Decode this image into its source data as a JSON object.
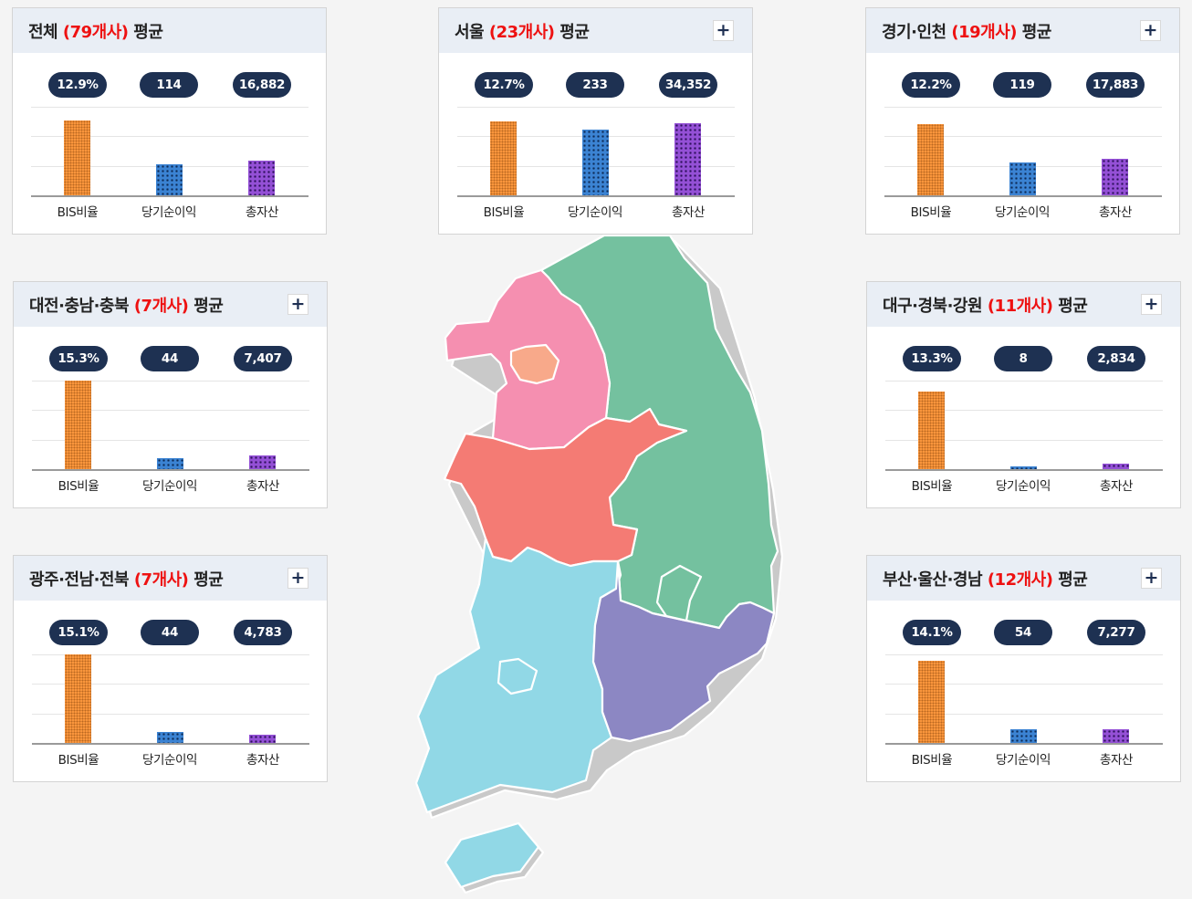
{
  "categories": [
    "BIS비율",
    "당기순이익",
    "총자산"
  ],
  "colors": {
    "count_text": "#ee1111",
    "pill_bg": "#1e3152",
    "bar_bis": "#f9953c",
    "bar_net_income": "#3b83d3",
    "bar_total_assets": "#9450d6",
    "region_capital": "#f58fb0",
    "region_seoul": "#f8a98a",
    "region_gangwon_gyeongbuk": "#74c19f",
    "region_chungcheong": "#f47b74",
    "region_honam": "#91d8e6",
    "region_busan_gyeongnam": "#8c87c3"
  },
  "plus_icon": "+",
  "panels": {
    "total": {
      "title_pre": "전체 ",
      "count": "(79개사)",
      "title_post": " 평균",
      "has_plus": false,
      "bis": "12.9%",
      "net": "114",
      "assets": "16,882"
    },
    "seoul": {
      "title_pre": "서울 ",
      "count": "(23개사)",
      "title_post": " 평균",
      "has_plus": true,
      "bis": "12.7%",
      "net": "233",
      "assets": "34,352"
    },
    "gyeonggi": {
      "title_pre": "경기·인천 ",
      "count": "(19개사)",
      "title_post": " 평균",
      "has_plus": true,
      "bis": "12.2%",
      "net": "119",
      "assets": "17,883"
    },
    "daejeon": {
      "title_pre": "대전·충남·충북 ",
      "count": "(7개사)",
      "title_post": " 평균",
      "has_plus": true,
      "bis": "15.3%",
      "net": "44",
      "assets": "7,407"
    },
    "daegu": {
      "title_pre": "대구·경북·강원 ",
      "count": "(11개사)",
      "title_post": " 평균",
      "has_plus": true,
      "bis": "13.3%",
      "net": "8",
      "assets": "2,834"
    },
    "gwangju": {
      "title_pre": "광주·전남·전북 ",
      "count": "(7개사)",
      "title_post": " 평균",
      "has_plus": true,
      "bis": "15.1%",
      "net": "44",
      "assets": "4,783"
    },
    "busan": {
      "title_pre": "부산·울산·경남 ",
      "count": "(12개사)",
      "title_post": " 평균",
      "has_plus": true,
      "bis": "14.1%",
      "net": "54",
      "assets": "7,277"
    }
  },
  "chart_data": [
    {
      "type": "bar",
      "panel": "total",
      "categories": [
        "BIS비율",
        "당기순이익",
        "총자산"
      ],
      "value_labels": [
        "12.9%",
        "114",
        "16,882"
      ],
      "relative_heights": [
        0.85,
        0.36,
        0.4
      ]
    },
    {
      "type": "bar",
      "panel": "seoul",
      "categories": [
        "BIS비율",
        "당기순이익",
        "총자산"
      ],
      "value_labels": [
        "12.7%",
        "233",
        "34,352"
      ],
      "relative_heights": [
        0.84,
        0.75,
        0.82
      ]
    },
    {
      "type": "bar",
      "panel": "gyeonggi",
      "categories": [
        "BIS비율",
        "당기순이익",
        "총자산"
      ],
      "value_labels": [
        "12.2%",
        "119",
        "17,883"
      ],
      "relative_heights": [
        0.81,
        0.38,
        0.42
      ]
    },
    {
      "type": "bar",
      "panel": "daejeon",
      "categories": [
        "BIS비율",
        "당기순이익",
        "총자산"
      ],
      "value_labels": [
        "15.3%",
        "44",
        "7,407"
      ],
      "relative_heights": [
        1.0,
        0.13,
        0.16
      ]
    },
    {
      "type": "bar",
      "panel": "daegu",
      "categories": [
        "BIS비율",
        "당기순이익",
        "총자산"
      ],
      "value_labels": [
        "13.3%",
        "8",
        "2,834"
      ],
      "relative_heights": [
        0.88,
        0.03,
        0.06
      ]
    },
    {
      "type": "bar",
      "panel": "gwangju",
      "categories": [
        "BIS비율",
        "당기순이익",
        "총자산"
      ],
      "value_labels": [
        "15.1%",
        "44",
        "4,783"
      ],
      "relative_heights": [
        1.0,
        0.13,
        0.1
      ]
    },
    {
      "type": "bar",
      "panel": "busan",
      "categories": [
        "BIS비율",
        "당기순이익",
        "총자산"
      ],
      "value_labels": [
        "14.1%",
        "54",
        "7,277"
      ],
      "relative_heights": [
        0.93,
        0.16,
        0.16
      ]
    }
  ]
}
